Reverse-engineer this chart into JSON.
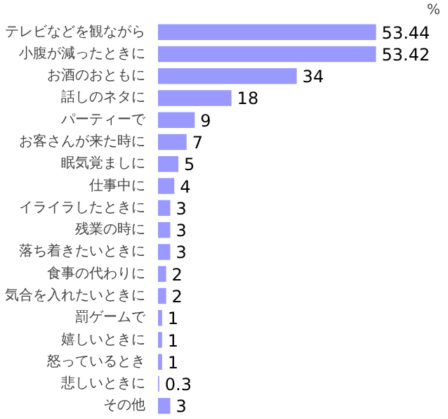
{
  "chart_data": {
    "type": "bar",
    "orientation": "horizontal",
    "data_labels": true,
    "categories": [
      "テレビなどを観ながら",
      "小腹が減ったときに",
      "お酒のおともに",
      "話しのネタに",
      "パーティーで",
      "お客さんが来た時に",
      "眠気覚ましに",
      "仕事中に",
      "イライラしたときに",
      "残業の時に",
      "落ち着きたいときに",
      "食事の代わりに",
      "気合を入れたいときに",
      "罰ゲームで",
      "嬉しいときに",
      "怒っているとき",
      "悲しいときに",
      "その他"
    ],
    "values": [
      53.44,
      53.42,
      34,
      18,
      9,
      7,
      5,
      4,
      3,
      3,
      3,
      2,
      2,
      1,
      1,
      1,
      0.3,
      3
    ],
    "color": "#9999ff",
    "annotations": [
      "%"
    ]
  }
}
